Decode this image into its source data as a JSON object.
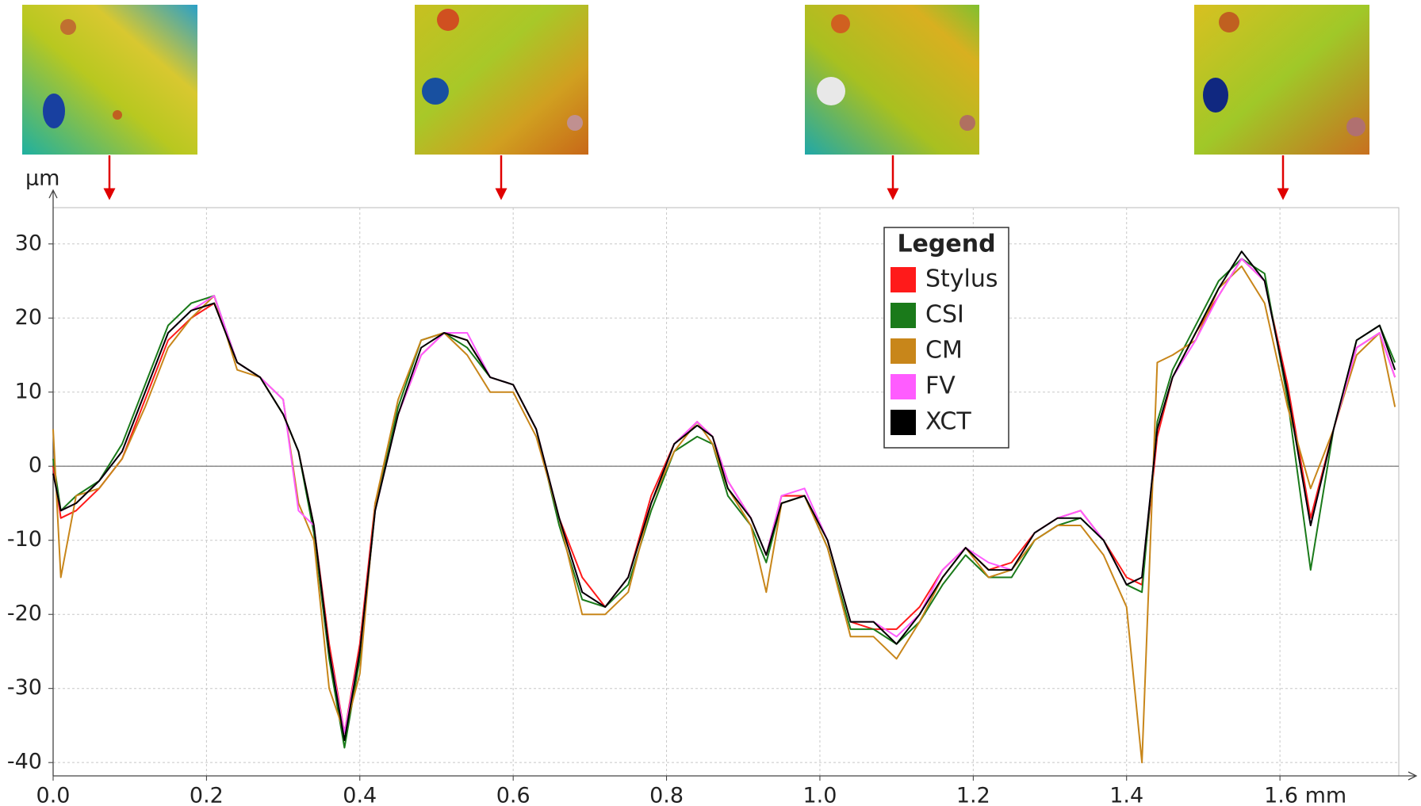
{
  "chart_data": {
    "type": "line",
    "y_label": "µm",
    "legend_title": "Legend",
    "legend_position": "upper center",
    "grid": true,
    "xlim": [
      0,
      1.755
    ],
    "ylim": [
      -41.8,
      34.9
    ],
    "xticks": [
      {
        "value": 0,
        "label": "0.0"
      },
      0.2,
      0.4,
      0.6,
      0.8,
      {
        "value": 1,
        "label": "1.0"
      },
      1.2,
      1.4,
      {
        "value": 1.6,
        "label": "1.6 mm"
      }
    ],
    "yticks": [
      30,
      20,
      10,
      0,
      -10,
      -20,
      -30,
      -40
    ],
    "x": [
      0,
      0.01,
      0.03,
      0.06,
      0.09,
      0.12,
      0.15,
      0.18,
      0.21,
      0.24,
      0.27,
      0.3,
      0.32,
      0.34,
      0.36,
      0.38,
      0.4,
      0.42,
      0.45,
      0.48,
      0.51,
      0.54,
      0.57,
      0.6,
      0.63,
      0.66,
      0.69,
      0.72,
      0.75,
      0.78,
      0.81,
      0.84,
      0.86,
      0.88,
      0.91,
      0.93,
      0.95,
      0.98,
      1.01,
      1.04,
      1.07,
      1.1,
      1.13,
      1.16,
      1.19,
      1.22,
      1.25,
      1.28,
      1.31,
      1.34,
      1.37,
      1.4,
      1.42,
      1.44,
      1.46,
      1.49,
      1.52,
      1.55,
      1.58,
      1.61,
      1.64,
      1.67,
      1.7,
      1.73,
      1.75
    ],
    "series": [
      {
        "name": "Stylus",
        "color": "#ff1a1a",
        "values": [
          0,
          -7,
          -6,
          -3,
          1,
          9,
          17,
          20,
          22,
          14,
          12,
          7,
          2,
          -8,
          -24,
          -36,
          -24,
          -5,
          7,
          15,
          18,
          17,
          12,
          11,
          5,
          -7,
          -15,
          -19,
          -15,
          -4,
          3,
          6,
          4,
          -2,
          -7,
          -12,
          -4,
          -4,
          -10,
          -21,
          -22,
          -22,
          -19,
          -14,
          -11,
          -14,
          -13,
          -9,
          -7,
          -6,
          -10,
          -15,
          -16,
          4,
          12,
          18,
          23,
          28,
          25,
          11,
          -7,
          5,
          16,
          18,
          12
        ]
      },
      {
        "name": "CSI",
        "color": "#1a7a1a",
        "values": [
          1,
          -6,
          -4,
          -2,
          3,
          11,
          19,
          22,
          23,
          14,
          12,
          7,
          2,
          -9,
          -26,
          -38,
          -26,
          -6,
          8,
          17,
          18,
          16,
          12,
          11,
          5,
          -8,
          -18,
          -19,
          -16,
          -6,
          2,
          4,
          3,
          -4,
          -8,
          -13,
          -5,
          -4,
          -11,
          -22,
          -22,
          -24,
          -21,
          -16,
          -12,
          -15,
          -15,
          -10,
          -8,
          -7,
          -10,
          -16,
          -17,
          6,
          13,
          19,
          25,
          28,
          26,
          9,
          -14,
          5,
          17,
          19,
          14
        ]
      },
      {
        "name": "CM",
        "color": "#c8861a",
        "values": [
          5,
          -15,
          -4,
          -3,
          1,
          8,
          16,
          20,
          23,
          13,
          12,
          9,
          -5,
          -10,
          -30,
          -36,
          -28,
          -5,
          9,
          17,
          18,
          15,
          10,
          10,
          4,
          -7,
          -20,
          -20,
          -17,
          -5,
          2,
          6,
          3,
          -3,
          -8,
          -17,
          -5,
          -4,
          -11,
          -23,
          -23,
          -26,
          -21,
          -15,
          -11,
          -15,
          -14,
          -10,
          -8,
          -8,
          -12,
          -19,
          -40,
          14,
          15,
          17,
          24,
          27,
          22,
          8,
          -3,
          5,
          15,
          18,
          8
        ]
      },
      {
        "name": "FV",
        "color": "#ff5cff",
        "values": [
          -1,
          -6,
          -5,
          -2,
          2,
          10,
          18,
          21,
          23,
          14,
          12,
          9,
          -6,
          -8,
          -25,
          -36,
          -25,
          -6,
          7,
          15,
          18,
          18,
          12,
          11,
          5,
          -7,
          -17,
          -19,
          -15,
          -5,
          3,
          6,
          4,
          -2,
          -7,
          -12,
          -4,
          -3,
          -10,
          -21,
          -21,
          -23,
          -20,
          -14,
          -11,
          -13,
          -14,
          -9,
          -7,
          -6,
          -10,
          -16,
          -15,
          5,
          12,
          17,
          23,
          28,
          25,
          10,
          -8,
          5,
          16,
          18,
          12
        ]
      },
      {
        "name": "XCT",
        "color": "#000000",
        "values": [
          -1,
          -6,
          -5,
          -2,
          2,
          10,
          18,
          21,
          22,
          14,
          12,
          7,
          2,
          -8,
          -25,
          -37,
          -25,
          -6,
          7,
          16,
          18,
          17,
          12,
          11,
          5,
          -7,
          -17,
          -19,
          -15,
          -5,
          3,
          5.5,
          4,
          -3,
          -7,
          -12,
          -5,
          -4,
          -10,
          -21,
          -21,
          -24,
          -20,
          -15,
          -11,
          -14,
          -14,
          -9,
          -7,
          -7,
          -10,
          -16,
          -15,
          5,
          12,
          18,
          24,
          29,
          25,
          10,
          -8,
          5,
          17,
          19,
          13
        ]
      }
    ]
  }
}
